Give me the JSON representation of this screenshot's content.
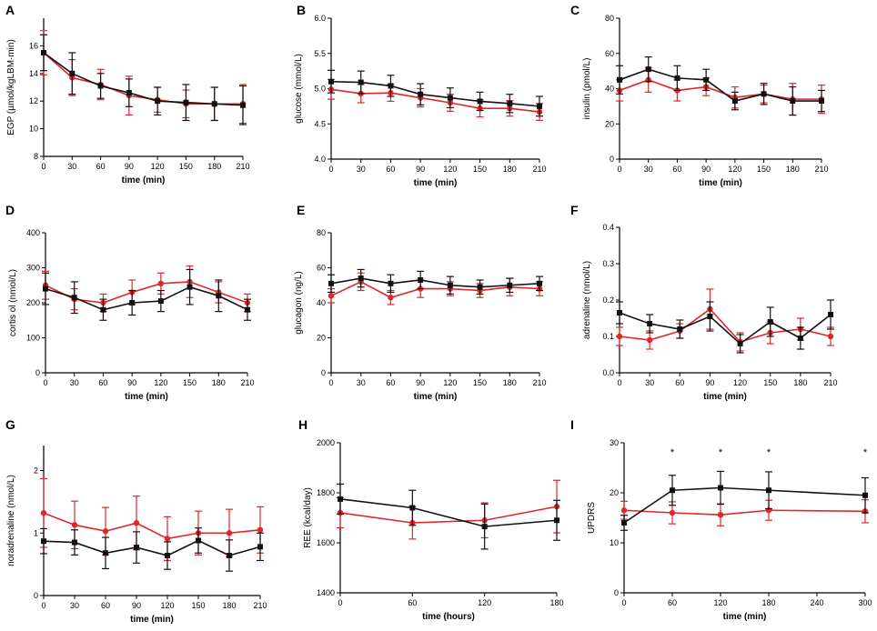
{
  "colors": {
    "black_series": "#111111",
    "red_series": "#e0262a"
  },
  "chart_data": [
    {
      "panel": "A",
      "type": "line",
      "ylabel": "EGP (µmol/kgLBM·min)",
      "xlabel": "time (min)",
      "xlim": [
        0,
        210
      ],
      "ylim": [
        8,
        18
      ],
      "xticks": [
        0,
        30,
        60,
        90,
        120,
        150,
        180,
        210
      ],
      "xtick_labels": [
        "0",
        "30",
        "60",
        "90",
        "120",
        "150",
        "180",
        "210"
      ],
      "yticks": [
        8,
        10,
        12,
        14,
        16
      ],
      "ytick_labels": [
        "8",
        "10",
        "12",
        "14",
        "16"
      ],
      "x": [
        0,
        30,
        60,
        90,
        120,
        150,
        180,
        210
      ],
      "series": [
        {
          "name": "black",
          "color": "#111111",
          "marker": "square",
          "values": [
            15.5,
            14.0,
            13.1,
            12.6,
            12.0,
            11.9,
            11.8,
            11.7
          ],
          "err": [
            1.3,
            1.5,
            0.9,
            1.0,
            1.0,
            1.3,
            1.2,
            1.4
          ]
        },
        {
          "name": "red",
          "color": "#e0262a",
          "marker": "circle",
          "values": [
            15.5,
            13.7,
            13.2,
            12.4,
            12.1,
            11.8,
            11.8,
            11.8
          ],
          "err": [
            1.6,
            1.3,
            1.1,
            1.4,
            0.9,
            1.0,
            1.2,
            1.4
          ]
        }
      ],
      "annotations": []
    },
    {
      "panel": "B",
      "type": "line",
      "ylabel": "glucose (mmol/L)",
      "xlabel": "time (min)",
      "xlim": [
        0,
        210
      ],
      "ylim": [
        4.0,
        6.0
      ],
      "xticks": [
        0,
        30,
        60,
        90,
        120,
        150,
        180,
        210
      ],
      "xtick_labels": [
        "0",
        "30",
        "60",
        "90",
        "120",
        "150",
        "180",
        "210"
      ],
      "yticks": [
        4.0,
        4.5,
        5.0,
        5.5,
        6.0
      ],
      "ytick_labels": [
        "4.0",
        "4.5",
        "5.0",
        "5.5",
        "6.0"
      ],
      "x": [
        0,
        30,
        60,
        90,
        120,
        150,
        180,
        210
      ],
      "series": [
        {
          "name": "black",
          "color": "#111111",
          "marker": "square",
          "values": [
            5.1,
            5.09,
            5.04,
            4.92,
            4.87,
            4.82,
            4.79,
            4.75
          ],
          "err": [
            0.16,
            0.16,
            0.15,
            0.15,
            0.14,
            0.13,
            0.13,
            0.14
          ]
        },
        {
          "name": "red",
          "color": "#e0262a",
          "marker": "circle",
          "values": [
            4.99,
            4.93,
            4.94,
            4.87,
            4.8,
            4.72,
            4.72,
            4.67
          ],
          "err": [
            0.14,
            0.13,
            0.12,
            0.13,
            0.12,
            0.12,
            0.11,
            0.12
          ]
        }
      ],
      "annotations": []
    },
    {
      "panel": "C",
      "type": "line",
      "ylabel": "insulin (pmol/L)",
      "xlabel": "time (min)",
      "xlim": [
        0,
        210
      ],
      "ylim": [
        0,
        80
      ],
      "xticks": [
        0,
        30,
        60,
        90,
        120,
        150,
        180,
        210
      ],
      "xtick_labels": [
        "0",
        "30",
        "60",
        "90",
        "120",
        "150",
        "180",
        "210"
      ],
      "yticks": [
        0,
        20,
        40,
        60,
        80
      ],
      "ytick_labels": [
        "0",
        "20",
        "40",
        "60",
        "80"
      ],
      "x": [
        0,
        30,
        60,
        90,
        120,
        150,
        180,
        210
      ],
      "series": [
        {
          "name": "black",
          "color": "#111111",
          "marker": "square",
          "values": [
            45,
            51,
            46,
            45,
            33,
            37,
            33,
            33
          ],
          "err": [
            8,
            7,
            7,
            6,
            5,
            6,
            8,
            6
          ]
        },
        {
          "name": "red",
          "color": "#e0262a",
          "marker": "circle",
          "values": [
            39,
            45,
            39,
            41,
            35,
            37,
            34,
            34
          ],
          "err": [
            6,
            7,
            6,
            5,
            6,
            5,
            9,
            8
          ]
        }
      ],
      "annotations": []
    },
    {
      "panel": "D",
      "type": "line",
      "ylabel": "cortis ol (nmol/L)",
      "xlabel": "time (min)",
      "xlim": [
        0,
        210
      ],
      "ylim": [
        0,
        400
      ],
      "xticks": [
        0,
        30,
        60,
        90,
        120,
        150,
        180,
        210
      ],
      "xtick_labels": [
        "0",
        "30",
        "60",
        "90",
        "120",
        "150",
        "180",
        "210"
      ],
      "yticks": [
        0,
        100,
        200,
        300,
        400
      ],
      "ytick_labels": [
        "0",
        "100",
        "200",
        "300",
        "400"
      ],
      "x": [
        0,
        30,
        60,
        90,
        120,
        150,
        180,
        210
      ],
      "series": [
        {
          "name": "black",
          "color": "#111111",
          "marker": "square",
          "values": [
            240,
            215,
            180,
            200,
            205,
            245,
            220,
            180
          ],
          "err": [
            45,
            45,
            30,
            35,
            30,
            50,
            45,
            30
          ]
        },
        {
          "name": "red",
          "color": "#e0262a",
          "marker": "circle",
          "values": [
            250,
            210,
            200,
            230,
            255,
            260,
            230,
            200
          ],
          "err": [
            40,
            30,
            25,
            35,
            30,
            45,
            30,
            25
          ]
        }
      ],
      "annotations": []
    },
    {
      "panel": "E",
      "type": "line",
      "ylabel": "glucagon (ng/L)",
      "xlabel": "time (min)",
      "xlim": [
        0,
        210
      ],
      "ylim": [
        0,
        80
      ],
      "xticks": [
        0,
        30,
        60,
        90,
        120,
        150,
        180,
        210
      ],
      "xtick_labels": [
        "0",
        "30",
        "60",
        "90",
        "120",
        "150",
        "180",
        "210"
      ],
      "yticks": [
        0,
        20,
        40,
        60,
        80
      ],
      "ytick_labels": [
        "0",
        "20",
        "40",
        "60",
        "80"
      ],
      "x": [
        0,
        30,
        60,
        90,
        120,
        150,
        180,
        210
      ],
      "series": [
        {
          "name": "black",
          "color": "#111111",
          "marker": "square",
          "values": [
            51,
            54,
            51,
            53,
            50,
            49,
            50,
            51
          ],
          "err": [
            5,
            5,
            5,
            5,
            5,
            4,
            4,
            4
          ]
        },
        {
          "name": "red",
          "color": "#e0262a",
          "marker": "circle",
          "values": [
            44,
            52,
            43,
            48,
            48,
            47,
            49,
            48
          ],
          "err": [
            4,
            5,
            4,
            5,
            4,
            4,
            5,
            4
          ]
        }
      ],
      "annotations": []
    },
    {
      "panel": "F",
      "type": "line",
      "ylabel": "adrenaline (nmol/L)",
      "xlabel": "time (min)",
      "xlim": [
        0,
        210
      ],
      "ylim": [
        0,
        0.4
      ],
      "xticks": [
        0,
        30,
        60,
        90,
        120,
        150,
        180,
        210
      ],
      "xtick_labels": [
        "0",
        "30",
        "60",
        "90",
        "120",
        "150",
        "180",
        "210"
      ],
      "yticks": [
        0,
        0.1,
        0.2,
        0.3,
        0.4
      ],
      "ytick_labels": [
        "0.0",
        "0.1",
        "0.2",
        "0.3",
        "0.4"
      ],
      "x": [
        0,
        30,
        60,
        90,
        120,
        150,
        180,
        210
      ],
      "series": [
        {
          "name": "black",
          "color": "#111111",
          "marker": "square",
          "values": [
            0.165,
            0.135,
            0.12,
            0.155,
            0.08,
            0.14,
            0.095,
            0.16
          ],
          "err": [
            0.03,
            0.025,
            0.025,
            0.04,
            0.025,
            0.04,
            0.03,
            0.04
          ]
        },
        {
          "name": "red",
          "color": "#e0262a",
          "marker": "circle",
          "values": [
            0.1,
            0.09,
            0.115,
            0.175,
            0.085,
            0.11,
            0.12,
            0.1
          ],
          "err": [
            0.025,
            0.025,
            0.02,
            0.055,
            0.025,
            0.03,
            0.03,
            0.025
          ]
        }
      ],
      "annotations": []
    },
    {
      "panel": "G",
      "type": "line",
      "ylabel": "noradrenaline (nmol/L)",
      "xlabel": "time (min)",
      "xlim": [
        0,
        210
      ],
      "ylim": [
        0,
        2.4
      ],
      "xticks": [
        0,
        30,
        60,
        90,
        120,
        150,
        180,
        210
      ],
      "xtick_labels": [
        "0",
        "30",
        "60",
        "90",
        "120",
        "150",
        "180",
        "210"
      ],
      "yticks": [
        0,
        1,
        2
      ],
      "ytick_labels": [
        "0",
        "1",
        "2"
      ],
      "x": [
        0,
        30,
        60,
        90,
        120,
        150,
        180,
        210
      ],
      "series": [
        {
          "name": "black",
          "color": "#111111",
          "marker": "square",
          "values": [
            0.87,
            0.85,
            0.68,
            0.77,
            0.64,
            0.88,
            0.64,
            0.78
          ],
          "err": [
            0.2,
            0.2,
            0.25,
            0.25,
            0.22,
            0.2,
            0.25,
            0.22
          ]
        },
        {
          "name": "red",
          "color": "#e0262a",
          "marker": "circle",
          "values": [
            1.32,
            1.13,
            1.03,
            1.16,
            0.91,
            1.0,
            1.0,
            1.05
          ],
          "err": [
            0.55,
            0.38,
            0.38,
            0.43,
            0.35,
            0.35,
            0.38,
            0.37
          ]
        }
      ],
      "annotations": []
    },
    {
      "panel": "H",
      "type": "line",
      "ylabel": "REE (kcal/day)",
      "xlabel": "time (hours)",
      "xlim": [
        0,
        180
      ],
      "ylim": [
        1400,
        2000
      ],
      "xticks": [
        0,
        60,
        120,
        180
      ],
      "xtick_labels": [
        "0",
        "60",
        "120",
        "180"
      ],
      "yticks": [
        1400,
        1600,
        1800,
        2000
      ],
      "ytick_labels": [
        "1400",
        "1600",
        "1800",
        "2000"
      ],
      "x": [
        0,
        60,
        120,
        180
      ],
      "series": [
        {
          "name": "black",
          "color": "#111111",
          "marker": "square",
          "values": [
            1775,
            1740,
            1665,
            1690
          ],
          "err": [
            60,
            70,
            90,
            80
          ]
        },
        {
          "name": "red",
          "color": "#e0262a",
          "marker": "circle",
          "values": [
            1720,
            1680,
            1690,
            1745
          ],
          "err": [
            60,
            65,
            70,
            105
          ]
        }
      ],
      "annotations": []
    },
    {
      "panel": "I",
      "type": "line",
      "ylabel": "UPDRS",
      "xlabel": "time (min)",
      "xlim": [
        0,
        300
      ],
      "ylim": [
        0,
        30
      ],
      "xticks": [
        0,
        60,
        120,
        180,
        240,
        300
      ],
      "xtick_labels": [
        "0",
        "60",
        "120",
        "180",
        "240",
        "300"
      ],
      "yticks": [
        0,
        10,
        20,
        30
      ],
      "ytick_labels": [
        "0",
        "10",
        "20",
        "30"
      ],
      "x": [
        0,
        60,
        120,
        180,
        300
      ],
      "series": [
        {
          "name": "black",
          "color": "#111111",
          "marker": "square",
          "values": [
            14,
            20.5,
            21,
            20.5,
            19.5
          ],
          "err": [
            1.5,
            3,
            3.3,
            3.7,
            3.5
          ]
        },
        {
          "name": "red",
          "color": "#e0262a",
          "marker": "circle",
          "values": [
            16.5,
            16,
            15.6,
            16.5,
            16.3
          ],
          "err": [
            1.8,
            2.2,
            2.2,
            2,
            2.3
          ]
        }
      ],
      "annotations": [
        {
          "x": 60,
          "text": "*"
        },
        {
          "x": 120,
          "text": "*"
        },
        {
          "x": 180,
          "text": "*"
        },
        {
          "x": 300,
          "text": "*"
        }
      ]
    }
  ]
}
